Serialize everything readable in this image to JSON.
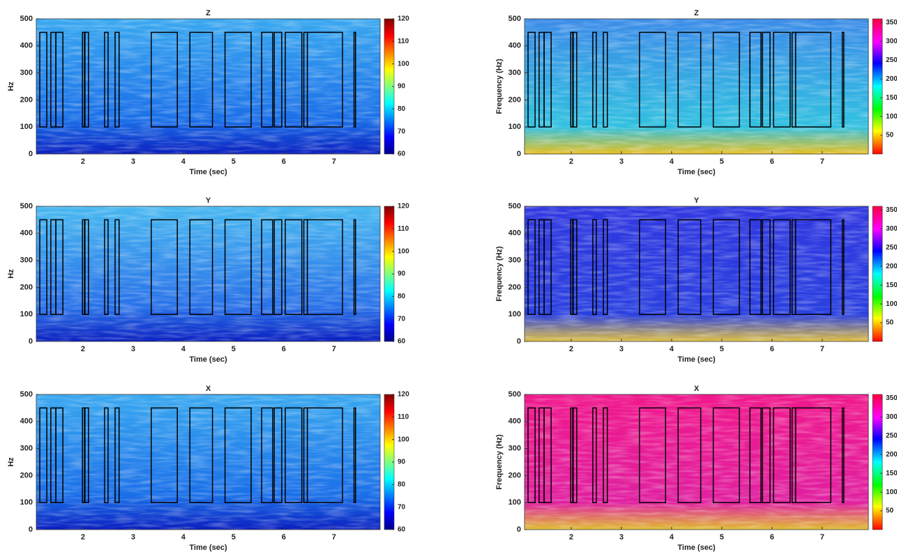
{
  "chart_data": [
    {
      "type": "heatmap",
      "title": "Z",
      "xlabel": "Time (sec)",
      "ylabel": "Hz",
      "xlim": [
        1.07,
        7.92
      ],
      "xticks": [
        2,
        3,
        4,
        5,
        6,
        7
      ],
      "ylim": [
        0,
        500
      ],
      "yticks": [
        0,
        100,
        200,
        300,
        400,
        500
      ],
      "colormap": "jet",
      "clim": [
        60,
        120
      ],
      "cbticks": [
        60,
        70,
        80,
        90,
        100,
        110,
        120
      ],
      "box_ylim": [
        100,
        450
      ],
      "boxes": [
        [
          1.14,
          1.28
        ],
        [
          1.36,
          1.46
        ],
        [
          1.46,
          1.6
        ],
        [
          1.99,
          2.03
        ],
        [
          2.04,
          2.11
        ],
        [
          2.43,
          2.5
        ],
        [
          2.64,
          2.72
        ],
        [
          3.36,
          3.88
        ],
        [
          4.13,
          4.58
        ],
        [
          4.83,
          5.35
        ],
        [
          5.56,
          5.78
        ],
        [
          5.81,
          5.96
        ],
        [
          6.03,
          6.36
        ],
        [
          6.4,
          6.47
        ],
        [
          6.47,
          7.17
        ],
        [
          7.4,
          7.43
        ]
      ]
    },
    {
      "type": "heatmap",
      "title": "Z",
      "xlabel": "Time (sec)",
      "ylabel": "Frequency (Hz)",
      "xlim": [
        1.07,
        7.92
      ],
      "xticks": [
        2,
        3,
        4,
        5,
        6,
        7
      ],
      "ylim": [
        0,
        500
      ],
      "yticks": [
        0,
        100,
        200,
        300,
        400,
        500
      ],
      "colormap": "hsv",
      "clim": [
        0,
        360
      ],
      "cbticks": [
        50,
        100,
        150,
        200,
        250,
        300,
        350
      ],
      "box_ylim": [
        100,
        450
      ],
      "boxes": [
        [
          1.14,
          1.28
        ],
        [
          1.36,
          1.46
        ],
        [
          1.46,
          1.6
        ],
        [
          1.99,
          2.03
        ],
        [
          2.04,
          2.11
        ],
        [
          2.43,
          2.5
        ],
        [
          2.64,
          2.72
        ],
        [
          3.36,
          3.88
        ],
        [
          4.13,
          4.58
        ],
        [
          4.83,
          5.35
        ],
        [
          5.56,
          5.78
        ],
        [
          5.81,
          5.96
        ],
        [
          6.03,
          6.36
        ],
        [
          6.4,
          6.47
        ],
        [
          6.47,
          7.17
        ],
        [
          7.4,
          7.43
        ]
      ]
    },
    {
      "type": "heatmap",
      "title": "Y",
      "xlabel": "Time (sec)",
      "ylabel": "Hz",
      "xlim": [
        1.07,
        7.92
      ],
      "xticks": [
        2,
        3,
        4,
        5,
        6,
        7
      ],
      "ylim": [
        0,
        500
      ],
      "yticks": [
        0,
        100,
        200,
        300,
        400,
        500
      ],
      "colormap": "jet",
      "clim": [
        60,
        120
      ],
      "cbticks": [
        60,
        70,
        80,
        90,
        100,
        110,
        120
      ],
      "box_ylim": [
        100,
        450
      ],
      "boxes": [
        [
          1.14,
          1.28
        ],
        [
          1.36,
          1.46
        ],
        [
          1.46,
          1.6
        ],
        [
          1.99,
          2.03
        ],
        [
          2.04,
          2.11
        ],
        [
          2.43,
          2.5
        ],
        [
          2.64,
          2.72
        ],
        [
          3.36,
          3.88
        ],
        [
          4.13,
          4.58
        ],
        [
          4.83,
          5.35
        ],
        [
          5.56,
          5.78
        ],
        [
          5.81,
          5.96
        ],
        [
          6.03,
          6.36
        ],
        [
          6.4,
          6.47
        ],
        [
          6.47,
          7.17
        ],
        [
          7.4,
          7.43
        ]
      ]
    },
    {
      "type": "heatmap",
      "title": "Y",
      "xlabel": "Time (sec)",
      "ylabel": "Frequency (Hz)",
      "xlim": [
        1.07,
        7.92
      ],
      "xticks": [
        2,
        3,
        4,
        5,
        6,
        7
      ],
      "ylim": [
        0,
        500
      ],
      "yticks": [
        0,
        100,
        200,
        300,
        400,
        500
      ],
      "colormap": "hsv",
      "clim": [
        0,
        360
      ],
      "cbticks": [
        50,
        100,
        150,
        200,
        250,
        300,
        350
      ],
      "box_ylim": [
        100,
        450
      ],
      "boxes": [
        [
          1.14,
          1.28
        ],
        [
          1.36,
          1.46
        ],
        [
          1.46,
          1.6
        ],
        [
          1.99,
          2.03
        ],
        [
          2.04,
          2.11
        ],
        [
          2.43,
          2.5
        ],
        [
          2.64,
          2.72
        ],
        [
          3.36,
          3.88
        ],
        [
          4.13,
          4.58
        ],
        [
          4.83,
          5.35
        ],
        [
          5.56,
          5.78
        ],
        [
          5.81,
          5.96
        ],
        [
          6.03,
          6.36
        ],
        [
          6.4,
          6.47
        ],
        [
          6.47,
          7.17
        ],
        [
          7.4,
          7.43
        ]
      ]
    },
    {
      "type": "heatmap",
      "title": "X",
      "xlabel": "Time (sec)",
      "ylabel": "Hz",
      "xlim": [
        1.07,
        7.92
      ],
      "xticks": [
        2,
        3,
        4,
        5,
        6,
        7
      ],
      "ylim": [
        0,
        500
      ],
      "yticks": [
        0,
        100,
        200,
        300,
        400,
        500
      ],
      "colormap": "jet",
      "clim": [
        60,
        120
      ],
      "cbticks": [
        60,
        70,
        80,
        90,
        100,
        110,
        120
      ],
      "box_ylim": [
        100,
        450
      ],
      "boxes": [
        [
          1.14,
          1.28
        ],
        [
          1.36,
          1.46
        ],
        [
          1.46,
          1.6
        ],
        [
          1.99,
          2.03
        ],
        [
          2.04,
          2.11
        ],
        [
          2.43,
          2.5
        ],
        [
          2.64,
          2.72
        ],
        [
          3.36,
          3.88
        ],
        [
          4.13,
          4.58
        ],
        [
          4.83,
          5.35
        ],
        [
          5.56,
          5.78
        ],
        [
          5.81,
          5.96
        ],
        [
          6.03,
          6.36
        ],
        [
          6.4,
          6.47
        ],
        [
          6.47,
          7.17
        ],
        [
          7.4,
          7.43
        ]
      ]
    },
    {
      "type": "heatmap",
      "title": "X",
      "xlabel": "Time (sec)",
      "ylabel": "Frequency (Hz)",
      "xlim": [
        1.07,
        7.92
      ],
      "xticks": [
        2,
        3,
        4,
        5,
        6,
        7
      ],
      "ylim": [
        0,
        500
      ],
      "yticks": [
        0,
        100,
        200,
        300,
        400,
        500
      ],
      "colormap": "hsv",
      "clim": [
        0,
        360
      ],
      "cbticks": [
        50,
        100,
        150,
        200,
        250,
        300,
        350
      ],
      "box_ylim": [
        100,
        450
      ],
      "boxes": [
        [
          1.14,
          1.28
        ],
        [
          1.36,
          1.46
        ],
        [
          1.46,
          1.6
        ],
        [
          1.99,
          2.03
        ],
        [
          2.04,
          2.11
        ],
        [
          2.43,
          2.5
        ],
        [
          2.64,
          2.72
        ],
        [
          3.36,
          3.88
        ],
        [
          4.13,
          4.58
        ],
        [
          4.83,
          5.35
        ],
        [
          5.56,
          5.78
        ],
        [
          5.81,
          5.96
        ],
        [
          6.03,
          6.36
        ],
        [
          6.4,
          6.47
        ],
        [
          6.47,
          7.17
        ],
        [
          7.4,
          7.43
        ]
      ]
    }
  ]
}
